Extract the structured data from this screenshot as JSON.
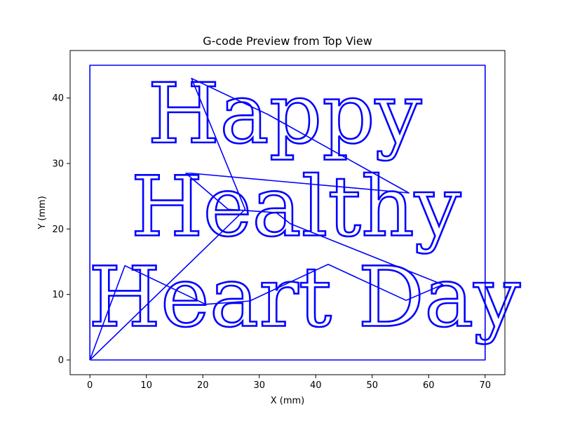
{
  "chart_data": {
    "type": "line",
    "title": "G-code Preview from Top View",
    "xlabel": "X (mm)",
    "ylabel": "Y (mm)",
    "xlim": [
      -3.5,
      73.5
    ],
    "ylim": [
      -2.25,
      47.25
    ],
    "xticks": [
      0,
      10,
      20,
      30,
      40,
      50,
      60,
      70
    ],
    "yticks": [
      0,
      10,
      20,
      30,
      40
    ],
    "grid": false,
    "line_color": "#0000ff",
    "text_lines": [
      {
        "text": "Happy",
        "x_center": 34.5,
        "baseline_y": 33.2
      },
      {
        "text": "Healthy",
        "x_center": 36.5,
        "baseline_y": 19.0
      },
      {
        "text": "Heart Day",
        "x_center": 38.0,
        "baseline_y": 5.2
      }
    ],
    "series": [
      {
        "values": [
          [
            0,
            0
          ],
          [
            0,
            45
          ],
          [
            70,
            45
          ],
          [
            70,
            0
          ],
          [
            0,
            0
          ]
        ]
      },
      {
        "values": [
          [
            0,
            0
          ],
          [
            6.2,
            14.4
          ],
          [
            20.5,
            8.5
          ],
          [
            28.3,
            9.0
          ],
          [
            34.5,
            11.5
          ],
          [
            42.2,
            14.6
          ],
          [
            56.0,
            9.1
          ],
          [
            62.5,
            11.5
          ],
          [
            35.5,
            20.8
          ],
          [
            33.0,
            22.5
          ],
          [
            24.5,
            23.0
          ],
          [
            17.0,
            28.5
          ],
          [
            18.0,
            28.5
          ],
          [
            56.5,
            25.5
          ],
          [
            31.5,
            37.5
          ],
          [
            18.0,
            43.0
          ],
          [
            27.5,
            23.0
          ],
          [
            0,
            0
          ]
        ]
      }
    ]
  }
}
